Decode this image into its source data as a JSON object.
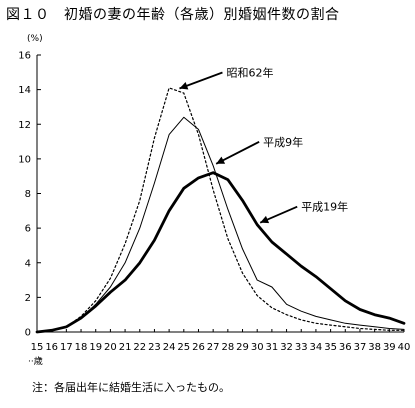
{
  "chart_data": {
    "type": "line",
    "title": "図１０　初婚の妻の年齢（各歳）別婚姻件数の割合",
    "ylabel": "(%)",
    "xlabel": "歳",
    "x": [
      15,
      16,
      17,
      18,
      19,
      20,
      21,
      22,
      23,
      24,
      25,
      26,
      27,
      28,
      29,
      30,
      31,
      32,
      33,
      34,
      35,
      36,
      37,
      38,
      39,
      40
    ],
    "x_tick_labels": [
      "15",
      "16",
      "17",
      "18",
      "19",
      "20",
      "21",
      "22",
      "23",
      "24",
      "25",
      "26",
      "27",
      "28",
      "29",
      "30",
      "31",
      "32",
      "33",
      "34",
      "35",
      "36",
      "37",
      "38",
      "39",
      "40"
    ],
    "ylim": [
      0,
      16
    ],
    "y_ticks": [
      0,
      2,
      4,
      6,
      8,
      10,
      12,
      14,
      16
    ],
    "grid": false,
    "series": [
      {
        "name": "昭和62年",
        "style": "dotted",
        "values": [
          0.0,
          0.1,
          0.3,
          0.9,
          1.8,
          3.1,
          5.1,
          7.6,
          11.2,
          14.1,
          13.8,
          11.4,
          8.2,
          5.4,
          3.4,
          2.1,
          1.4,
          1.0,
          0.7,
          0.5,
          0.4,
          0.3,
          0.2,
          0.15,
          0.1,
          0.1
        ]
      },
      {
        "name": "平成9年",
        "style": "thin",
        "values": [
          0.0,
          0.1,
          0.3,
          0.8,
          1.6,
          2.6,
          4.0,
          6.0,
          8.6,
          11.4,
          12.4,
          11.7,
          9.6,
          7.1,
          4.8,
          3.0,
          2.6,
          1.6,
          1.2,
          0.9,
          0.7,
          0.5,
          0.4,
          0.3,
          0.2,
          0.15
        ]
      },
      {
        "name": "平成19年",
        "style": "thick",
        "values": [
          0.0,
          0.1,
          0.3,
          0.8,
          1.5,
          2.3,
          3.0,
          4.0,
          5.3,
          7.0,
          8.3,
          8.9,
          9.2,
          8.8,
          7.6,
          6.2,
          5.2,
          4.5,
          3.8,
          3.2,
          2.5,
          1.8,
          1.3,
          1.0,
          0.8,
          0.5
        ]
      }
    ],
    "annotations": [
      {
        "text": "昭和62年",
        "series": "昭和62年",
        "at_x": 24.5
      },
      {
        "text": "平成9年",
        "series": "平成9年",
        "at_x": 27
      },
      {
        "text": "平成19年",
        "series": "平成19年",
        "at_x": 30
      }
    ]
  },
  "note": "注：各届出年に結婚生活に入ったもの。"
}
